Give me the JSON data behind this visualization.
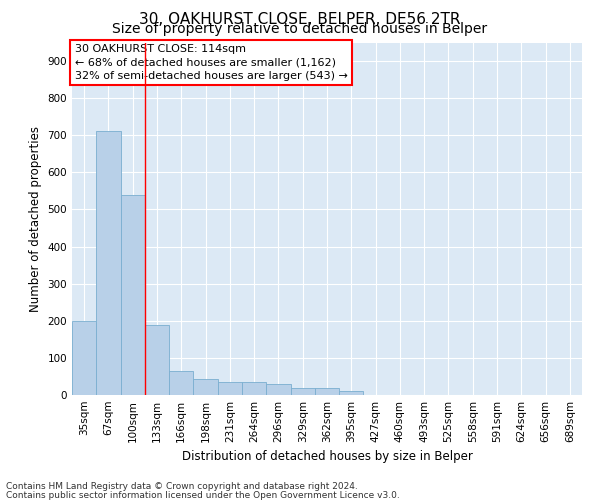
{
  "title1": "30, OAKHURST CLOSE, BELPER, DE56 2TR",
  "title2": "Size of property relative to detached houses in Belper",
  "xlabel": "Distribution of detached houses by size in Belper",
  "ylabel": "Number of detached properties",
  "categories": [
    "35sqm",
    "67sqm",
    "100sqm",
    "133sqm",
    "166sqm",
    "198sqm",
    "231sqm",
    "264sqm",
    "296sqm",
    "329sqm",
    "362sqm",
    "395sqm",
    "427sqm",
    "460sqm",
    "493sqm",
    "525sqm",
    "558sqm",
    "591sqm",
    "624sqm",
    "656sqm",
    "689sqm"
  ],
  "values": [
    200,
    712,
    540,
    190,
    65,
    42,
    36,
    34,
    30,
    20,
    18,
    12,
    0,
    0,
    0,
    0,
    0,
    0,
    0,
    0,
    0
  ],
  "bar_color": "#b8d0e8",
  "bar_edge_color": "#7aaed0",
  "red_line_x": 2.5,
  "annotation_text": "30 OAKHURST CLOSE: 114sqm\n← 68% of detached houses are smaller (1,162)\n32% of semi-detached houses are larger (543) →",
  "annotation_box_color": "white",
  "annotation_box_edge": "red",
  "ylim": [
    0,
    950
  ],
  "yticks": [
    0,
    100,
    200,
    300,
    400,
    500,
    600,
    700,
    800,
    900
  ],
  "background_color": "#dce9f5",
  "grid_color": "white",
  "footer1": "Contains HM Land Registry data © Crown copyright and database right 2024.",
  "footer2": "Contains public sector information licensed under the Open Government Licence v3.0.",
  "title1_fontsize": 11,
  "title2_fontsize": 10,
  "tick_fontsize": 7.5,
  "label_fontsize": 8.5,
  "annotation_fontsize": 8,
  "footer_fontsize": 6.5
}
